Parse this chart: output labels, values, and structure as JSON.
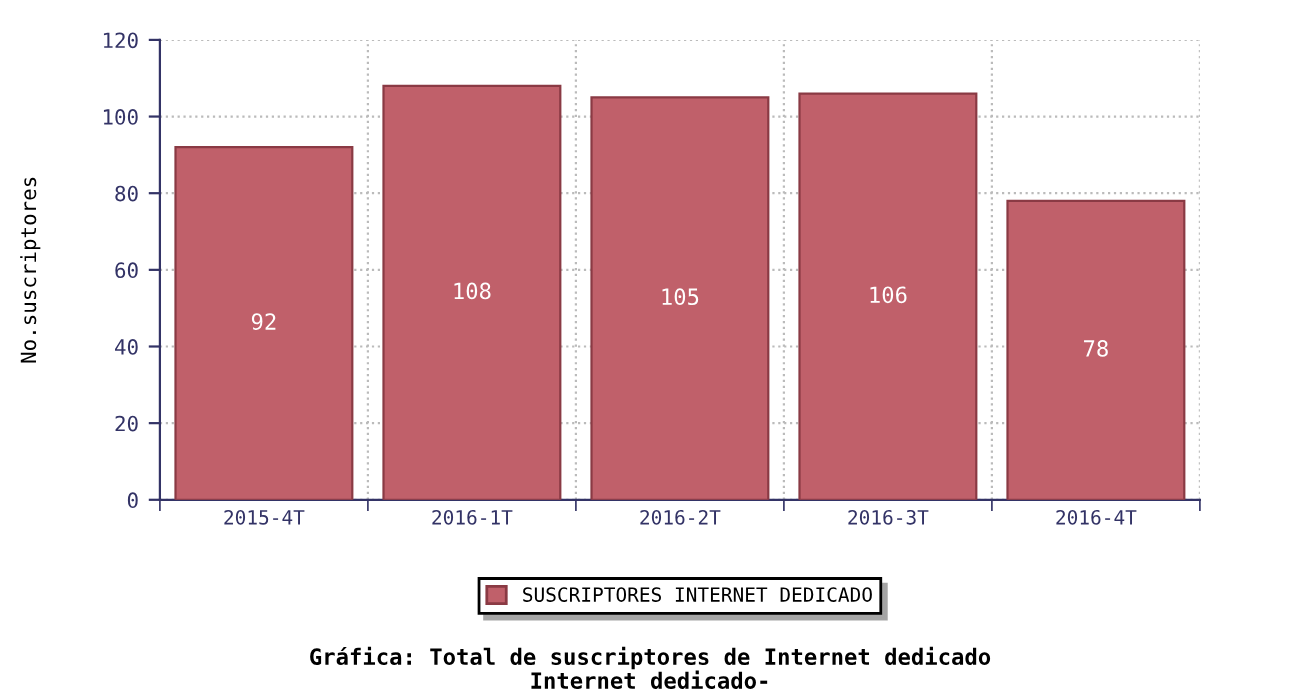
{
  "chart_data": {
    "type": "bar",
    "title": "Gráfica: Total de suscriptores de Internet dedicado",
    "subtitle": "Internet dedicado-",
    "ylabel": "No.suscriptores",
    "categories": [
      "2015-4T",
      "2016-1T",
      "2016-2T",
      "2016-3T",
      "2016-4T"
    ],
    "series": [
      {
        "name": "SUSCRIPTORES INTERNET DEDICADO",
        "color": "#c0606a",
        "values": [
          92,
          108,
          105,
          106,
          78
        ]
      }
    ],
    "ylim": [
      0,
      120
    ],
    "yticks": [
      0,
      20,
      40,
      60,
      80,
      100,
      120
    ],
    "grid": true,
    "legend": "bottom",
    "data_labels": true
  }
}
